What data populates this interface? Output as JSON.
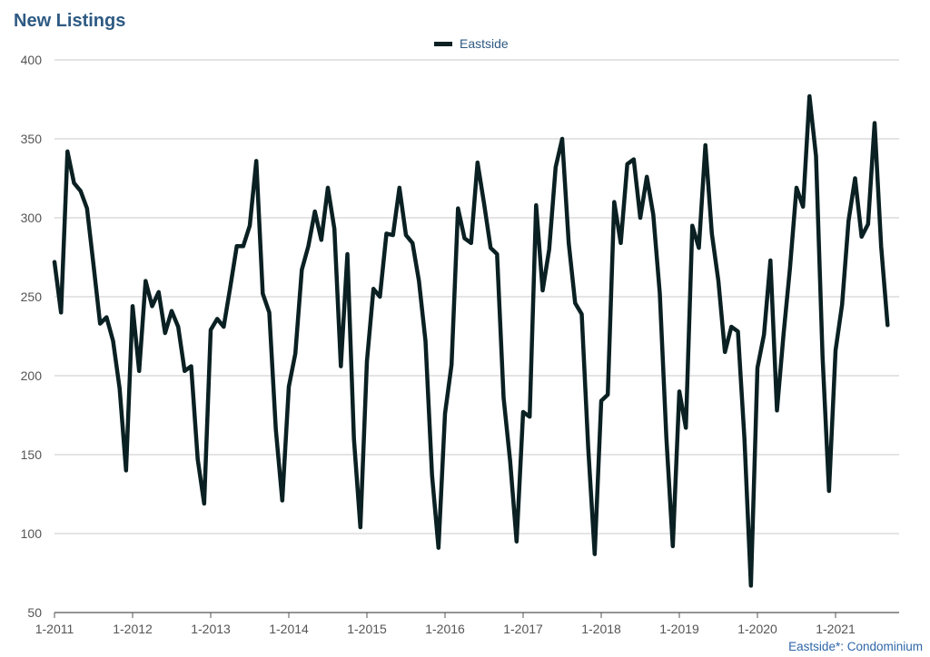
{
  "title": "New Listings",
  "footnote": "Eastside*: Condominium",
  "chart_data": {
    "type": "line",
    "title": "New Listings",
    "xlabel": "",
    "ylabel": "",
    "ylim": [
      50,
      400
    ],
    "yticks": [
      50,
      100,
      150,
      200,
      250,
      300,
      350,
      400
    ],
    "x_tick_labels": [
      "1-2011",
      "1-2012",
      "1-2013",
      "1-2014",
      "1-2015",
      "1-2016",
      "1-2017",
      "1-2018",
      "1-2019",
      "1-2020",
      "1-2021"
    ],
    "x_start": "1-2011",
    "frequency": "monthly",
    "grid": true,
    "legend_position": "top-center",
    "series": [
      {
        "name": "Eastside",
        "color": "#0a2022",
        "values": [
          272,
          240,
          342,
          322,
          317,
          306,
          270,
          233,
          237,
          222,
          192,
          140,
          244,
          203,
          260,
          244,
          253,
          227,
          241,
          231,
          203,
          206,
          147,
          119,
          229,
          236,
          231,
          256,
          282,
          282,
          295,
          336,
          252,
          240,
          166,
          121,
          193,
          214,
          267,
          282,
          304,
          286,
          319,
          293,
          206,
          277,
          160,
          104,
          209,
          255,
          250,
          290,
          289,
          319,
          289,
          284,
          260,
          222,
          137,
          91,
          176,
          207,
          306,
          287,
          284,
          335,
          309,
          281,
          277,
          186,
          146,
          95,
          177,
          174,
          308,
          254,
          280,
          332,
          350,
          284,
          246,
          239,
          154,
          87,
          184,
          188,
          310,
          284,
          334,
          337,
          300,
          326,
          302,
          252,
          161,
          92,
          190,
          167,
          295,
          281,
          346,
          290,
          260,
          215,
          231,
          228,
          160,
          67,
          205,
          226,
          273,
          178,
          226,
          268,
          319,
          307,
          377,
          339,
          212,
          127,
          216,
          245,
          298,
          325,
          288,
          296,
          360,
          282,
          232
        ]
      }
    ]
  }
}
